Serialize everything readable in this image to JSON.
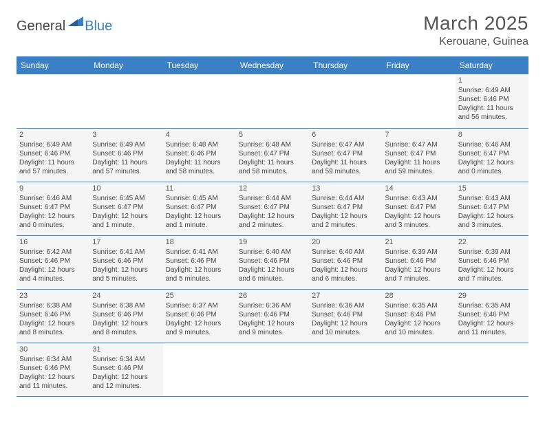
{
  "logo": {
    "text_general": "General",
    "text_blue": "Blue",
    "triangle_color": "#3b7fc4"
  },
  "title": {
    "month": "March 2025",
    "location": "Kerouane, Guinea"
  },
  "colors": {
    "header_bg": "#3b7fc4",
    "header_text": "#ffffff",
    "cell_bg": "#f5f5f5",
    "text": "#444444",
    "border": "#3b7fc4"
  },
  "daynames": [
    "Sunday",
    "Monday",
    "Tuesday",
    "Wednesday",
    "Thursday",
    "Friday",
    "Saturday"
  ],
  "weeks": [
    [
      {
        "empty": true
      },
      {
        "empty": true
      },
      {
        "empty": true
      },
      {
        "empty": true
      },
      {
        "empty": true
      },
      {
        "empty": true
      },
      {
        "day": "1",
        "sunrise": "Sunrise: 6:49 AM",
        "sunset": "Sunset: 6:46 PM",
        "daylight": "Daylight: 11 hours and 56 minutes."
      }
    ],
    [
      {
        "day": "2",
        "sunrise": "Sunrise: 6:49 AM",
        "sunset": "Sunset: 6:46 PM",
        "daylight": "Daylight: 11 hours and 57 minutes."
      },
      {
        "day": "3",
        "sunrise": "Sunrise: 6:49 AM",
        "sunset": "Sunset: 6:46 PM",
        "daylight": "Daylight: 11 hours and 57 minutes."
      },
      {
        "day": "4",
        "sunrise": "Sunrise: 6:48 AM",
        "sunset": "Sunset: 6:46 PM",
        "daylight": "Daylight: 11 hours and 58 minutes."
      },
      {
        "day": "5",
        "sunrise": "Sunrise: 6:48 AM",
        "sunset": "Sunset: 6:47 PM",
        "daylight": "Daylight: 11 hours and 58 minutes."
      },
      {
        "day": "6",
        "sunrise": "Sunrise: 6:47 AM",
        "sunset": "Sunset: 6:47 PM",
        "daylight": "Daylight: 11 hours and 59 minutes."
      },
      {
        "day": "7",
        "sunrise": "Sunrise: 6:47 AM",
        "sunset": "Sunset: 6:47 PM",
        "daylight": "Daylight: 11 hours and 59 minutes."
      },
      {
        "day": "8",
        "sunrise": "Sunrise: 6:46 AM",
        "sunset": "Sunset: 6:47 PM",
        "daylight": "Daylight: 12 hours and 0 minutes."
      }
    ],
    [
      {
        "day": "9",
        "sunrise": "Sunrise: 6:46 AM",
        "sunset": "Sunset: 6:47 PM",
        "daylight": "Daylight: 12 hours and 0 minutes."
      },
      {
        "day": "10",
        "sunrise": "Sunrise: 6:45 AM",
        "sunset": "Sunset: 6:47 PM",
        "daylight": "Daylight: 12 hours and 1 minute."
      },
      {
        "day": "11",
        "sunrise": "Sunrise: 6:45 AM",
        "sunset": "Sunset: 6:47 PM",
        "daylight": "Daylight: 12 hours and 1 minute."
      },
      {
        "day": "12",
        "sunrise": "Sunrise: 6:44 AM",
        "sunset": "Sunset: 6:47 PM",
        "daylight": "Daylight: 12 hours and 2 minutes."
      },
      {
        "day": "13",
        "sunrise": "Sunrise: 6:44 AM",
        "sunset": "Sunset: 6:47 PM",
        "daylight": "Daylight: 12 hours and 2 minutes."
      },
      {
        "day": "14",
        "sunrise": "Sunrise: 6:43 AM",
        "sunset": "Sunset: 6:47 PM",
        "daylight": "Daylight: 12 hours and 3 minutes."
      },
      {
        "day": "15",
        "sunrise": "Sunrise: 6:43 AM",
        "sunset": "Sunset: 6:47 PM",
        "daylight": "Daylight: 12 hours and 3 minutes."
      }
    ],
    [
      {
        "day": "16",
        "sunrise": "Sunrise: 6:42 AM",
        "sunset": "Sunset: 6:46 PM",
        "daylight": "Daylight: 12 hours and 4 minutes."
      },
      {
        "day": "17",
        "sunrise": "Sunrise: 6:41 AM",
        "sunset": "Sunset: 6:46 PM",
        "daylight": "Daylight: 12 hours and 5 minutes."
      },
      {
        "day": "18",
        "sunrise": "Sunrise: 6:41 AM",
        "sunset": "Sunset: 6:46 PM",
        "daylight": "Daylight: 12 hours and 5 minutes."
      },
      {
        "day": "19",
        "sunrise": "Sunrise: 6:40 AM",
        "sunset": "Sunset: 6:46 PM",
        "daylight": "Daylight: 12 hours and 6 minutes."
      },
      {
        "day": "20",
        "sunrise": "Sunrise: 6:40 AM",
        "sunset": "Sunset: 6:46 PM",
        "daylight": "Daylight: 12 hours and 6 minutes."
      },
      {
        "day": "21",
        "sunrise": "Sunrise: 6:39 AM",
        "sunset": "Sunset: 6:46 PM",
        "daylight": "Daylight: 12 hours and 7 minutes."
      },
      {
        "day": "22",
        "sunrise": "Sunrise: 6:39 AM",
        "sunset": "Sunset: 6:46 PM",
        "daylight": "Daylight: 12 hours and 7 minutes."
      }
    ],
    [
      {
        "day": "23",
        "sunrise": "Sunrise: 6:38 AM",
        "sunset": "Sunset: 6:46 PM",
        "daylight": "Daylight: 12 hours and 8 minutes."
      },
      {
        "day": "24",
        "sunrise": "Sunrise: 6:38 AM",
        "sunset": "Sunset: 6:46 PM",
        "daylight": "Daylight: 12 hours and 8 minutes."
      },
      {
        "day": "25",
        "sunrise": "Sunrise: 6:37 AM",
        "sunset": "Sunset: 6:46 PM",
        "daylight": "Daylight: 12 hours and 9 minutes."
      },
      {
        "day": "26",
        "sunrise": "Sunrise: 6:36 AM",
        "sunset": "Sunset: 6:46 PM",
        "daylight": "Daylight: 12 hours and 9 minutes."
      },
      {
        "day": "27",
        "sunrise": "Sunrise: 6:36 AM",
        "sunset": "Sunset: 6:46 PM",
        "daylight": "Daylight: 12 hours and 10 minutes."
      },
      {
        "day": "28",
        "sunrise": "Sunrise: 6:35 AM",
        "sunset": "Sunset: 6:46 PM",
        "daylight": "Daylight: 12 hours and 10 minutes."
      },
      {
        "day": "29",
        "sunrise": "Sunrise: 6:35 AM",
        "sunset": "Sunset: 6:46 PM",
        "daylight": "Daylight: 12 hours and 11 minutes."
      }
    ],
    [
      {
        "day": "30",
        "sunrise": "Sunrise: 6:34 AM",
        "sunset": "Sunset: 6:46 PM",
        "daylight": "Daylight: 12 hours and 11 minutes."
      },
      {
        "day": "31",
        "sunrise": "Sunrise: 6:34 AM",
        "sunset": "Sunset: 6:46 PM",
        "daylight": "Daylight: 12 hours and 12 minutes."
      },
      {
        "empty": true
      },
      {
        "empty": true
      },
      {
        "empty": true
      },
      {
        "empty": true
      },
      {
        "empty": true
      }
    ]
  ]
}
